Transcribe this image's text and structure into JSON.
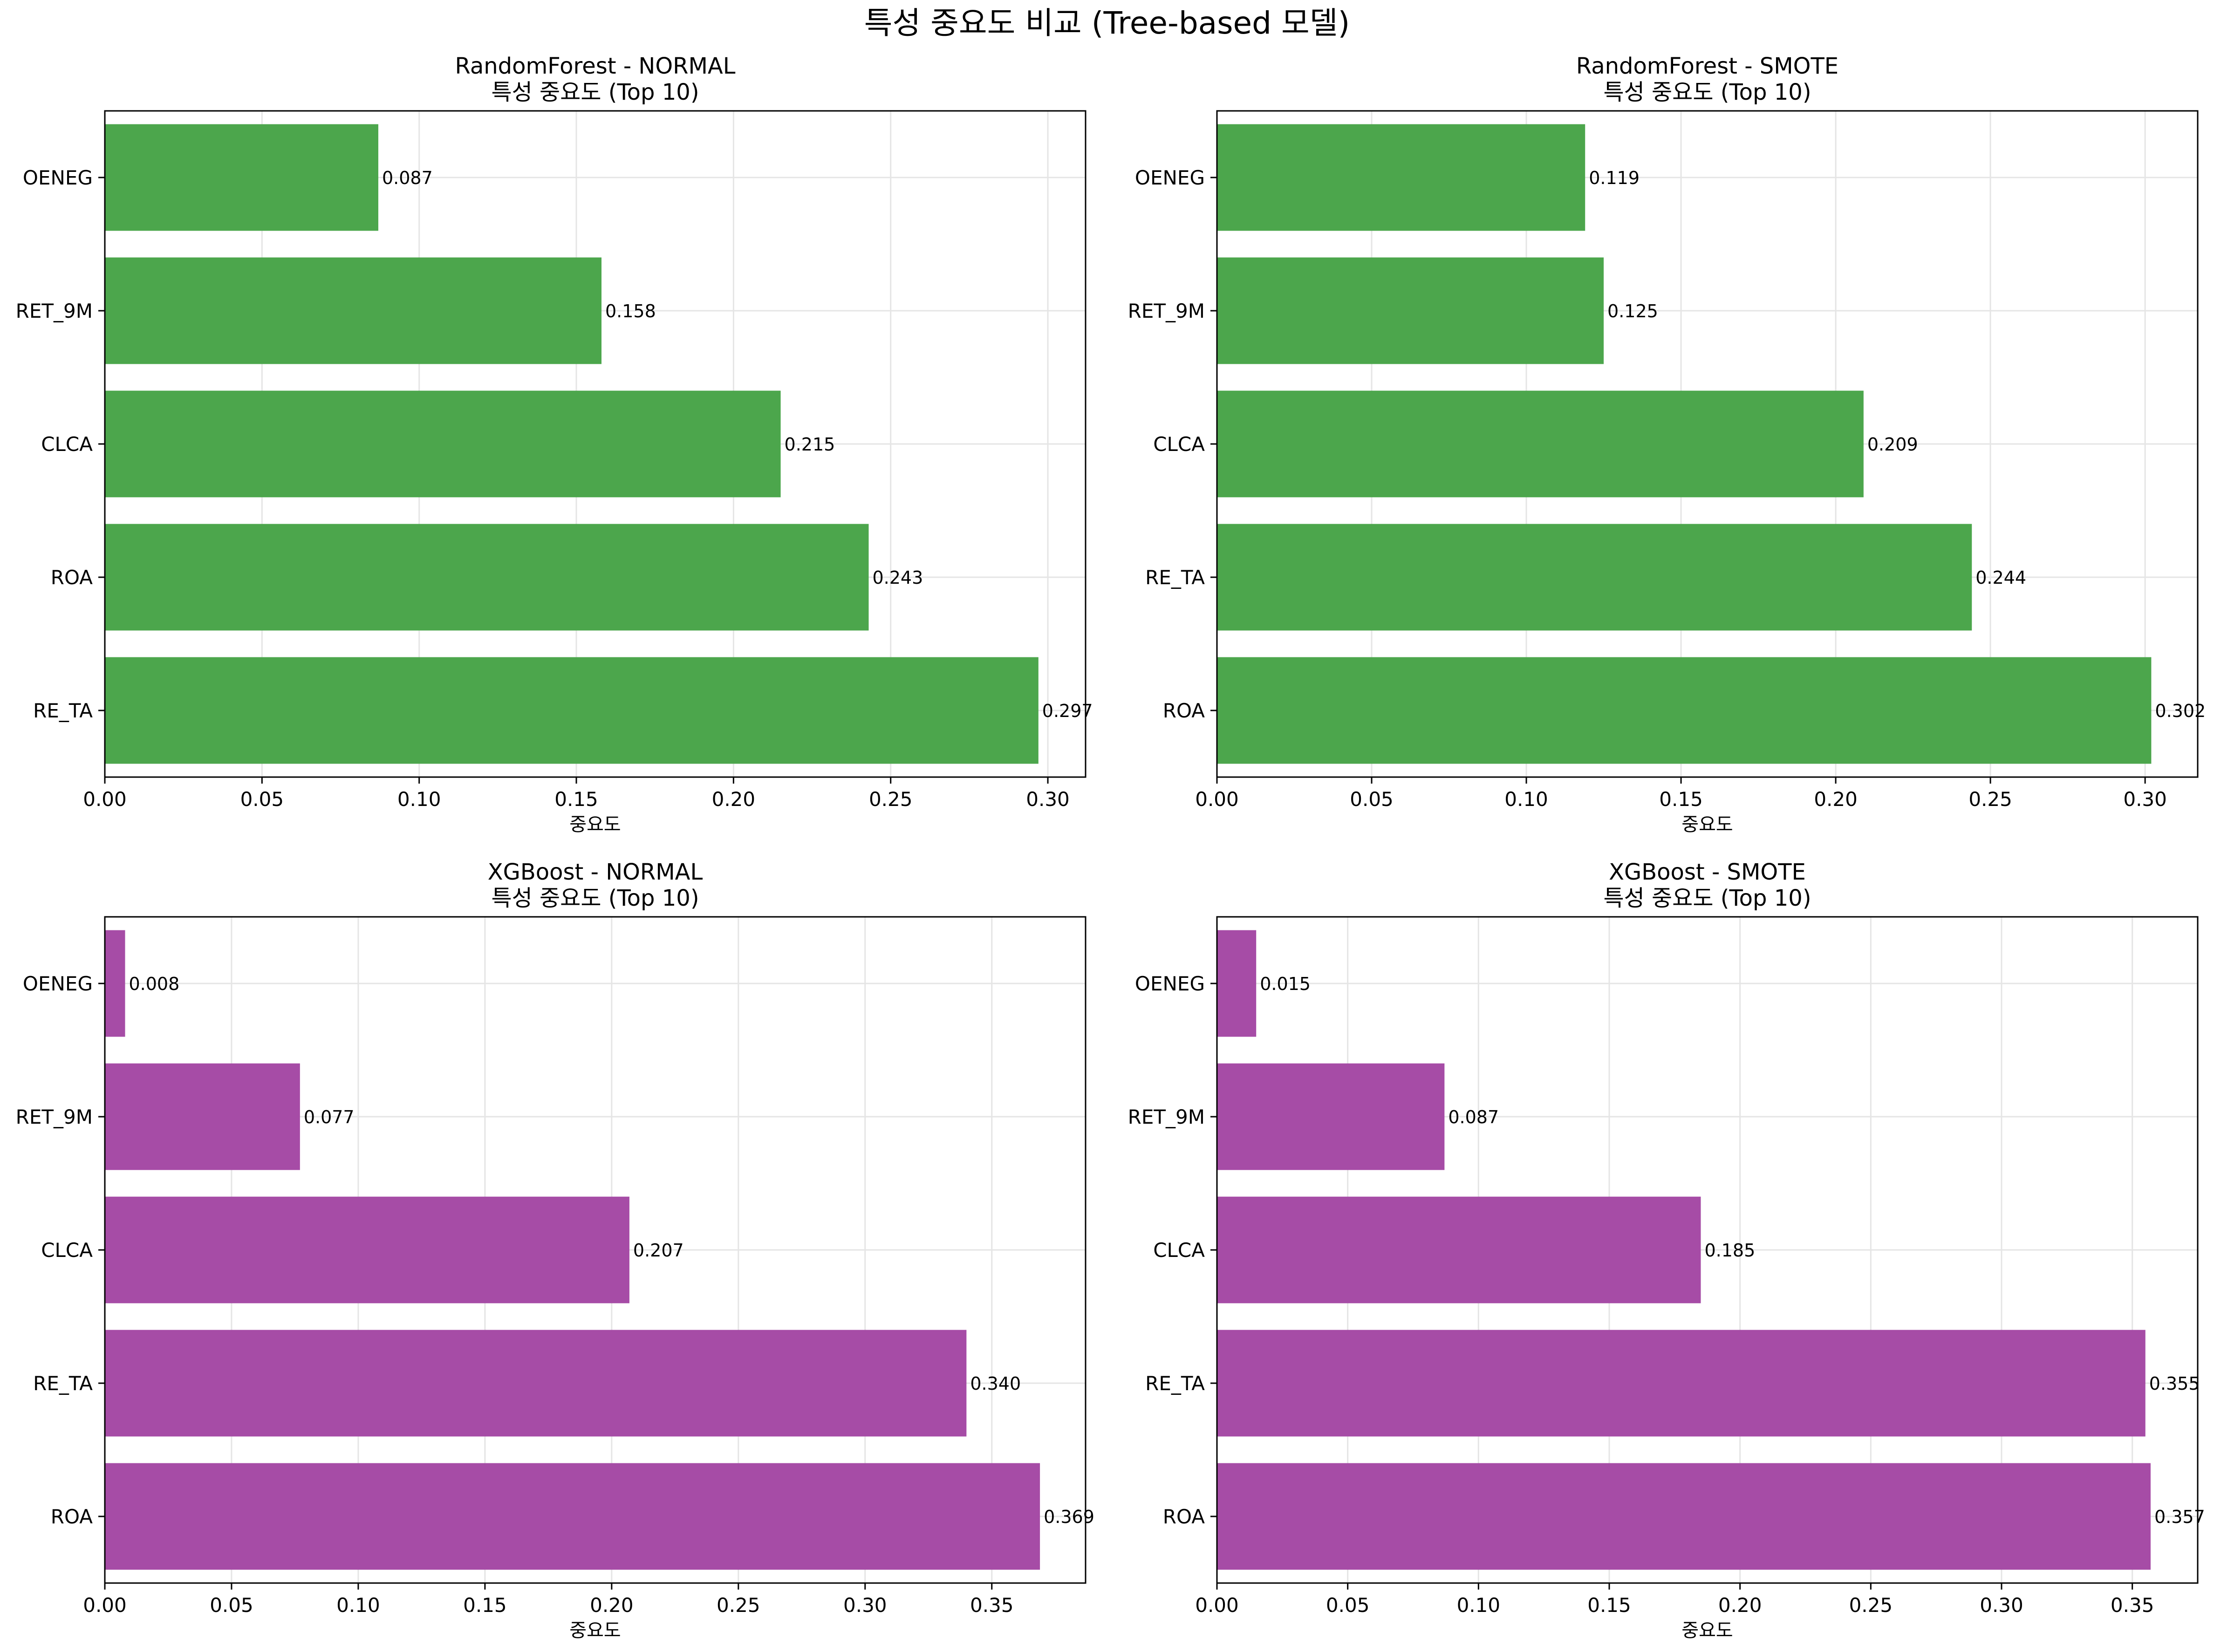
{
  "suptitle": "특성 중요도 비교 (Tree-based 모델)",
  "colors": {
    "random_forest": "#4ca64c",
    "xgboost": "#a64ca6",
    "grid": "#e5e5e5",
    "axis": "#000000"
  },
  "chart_data": [
    {
      "type": "bar",
      "orientation": "horizontal",
      "title_line1": "RandomForest - NORMAL",
      "title_line2": "특성 중요도 (Top 10)",
      "xlabel": "중요도",
      "ylabel": "",
      "color": "#4ca64c",
      "categories": [
        "RE_TA",
        "ROA",
        "CLCA",
        "RET_9M",
        "OENEG"
      ],
      "values": [
        0.297,
        0.243,
        0.215,
        0.158,
        0.087
      ],
      "value_labels": [
        "0.297",
        "0.243",
        "0.215",
        "0.158",
        "0.087"
      ],
      "xlim": [
        0,
        0.312
      ],
      "xticks": [
        0.0,
        0.05,
        0.1,
        0.15,
        0.2,
        0.25,
        0.3
      ],
      "xtick_labels": [
        "0.00",
        "0.05",
        "0.10",
        "0.15",
        "0.20",
        "0.25",
        "0.30"
      ],
      "grid": true
    },
    {
      "type": "bar",
      "orientation": "horizontal",
      "title_line1": "RandomForest - SMOTE",
      "title_line2": "특성 중요도 (Top 10)",
      "xlabel": "중요도",
      "ylabel": "",
      "color": "#4ca64c",
      "categories": [
        "ROA",
        "RE_TA",
        "CLCA",
        "RET_9M",
        "OENEG"
      ],
      "values": [
        0.302,
        0.244,
        0.209,
        0.125,
        0.119
      ],
      "value_labels": [
        "0.302",
        "0.244",
        "0.209",
        "0.125",
        "0.119"
      ],
      "xlim": [
        0,
        0.317
      ],
      "xticks": [
        0.0,
        0.05,
        0.1,
        0.15,
        0.2,
        0.25,
        0.3
      ],
      "xtick_labels": [
        "0.00",
        "0.05",
        "0.10",
        "0.15",
        "0.20",
        "0.25",
        "0.30"
      ],
      "grid": true
    },
    {
      "type": "bar",
      "orientation": "horizontal",
      "title_line1": "XGBoost - NORMAL",
      "title_line2": "특성 중요도 (Top 10)",
      "xlabel": "중요도",
      "ylabel": "",
      "color": "#a64ca6",
      "categories": [
        "ROA",
        "RE_TA",
        "CLCA",
        "RET_9M",
        "OENEG"
      ],
      "values": [
        0.369,
        0.34,
        0.207,
        0.077,
        0.008
      ],
      "value_labels": [
        "0.369",
        "0.340",
        "0.207",
        "0.077",
        "0.008"
      ],
      "xlim": [
        0,
        0.387
      ],
      "xticks": [
        0.0,
        0.05,
        0.1,
        0.15,
        0.2,
        0.25,
        0.3,
        0.35
      ],
      "xtick_labels": [
        "0.00",
        "0.05",
        "0.10",
        "0.15",
        "0.20",
        "0.25",
        "0.30",
        "0.35"
      ],
      "grid": true
    },
    {
      "type": "bar",
      "orientation": "horizontal",
      "title_line1": "XGBoost - SMOTE",
      "title_line2": "특성 중요도 (Top 10)",
      "xlabel": "중요도",
      "ylabel": "",
      "color": "#a64ca6",
      "categories": [
        "ROA",
        "RE_TA",
        "CLCA",
        "RET_9M",
        "OENEG"
      ],
      "values": [
        0.357,
        0.355,
        0.185,
        0.087,
        0.015
      ],
      "value_labels": [
        "0.357",
        "0.355",
        "0.185",
        "0.087",
        "0.015"
      ],
      "xlim": [
        0,
        0.375
      ],
      "xticks": [
        0.0,
        0.05,
        0.1,
        0.15,
        0.2,
        0.25,
        0.3,
        0.35
      ],
      "xtick_labels": [
        "0.00",
        "0.05",
        "0.10",
        "0.15",
        "0.20",
        "0.25",
        "0.30",
        "0.35"
      ],
      "grid": true
    }
  ]
}
